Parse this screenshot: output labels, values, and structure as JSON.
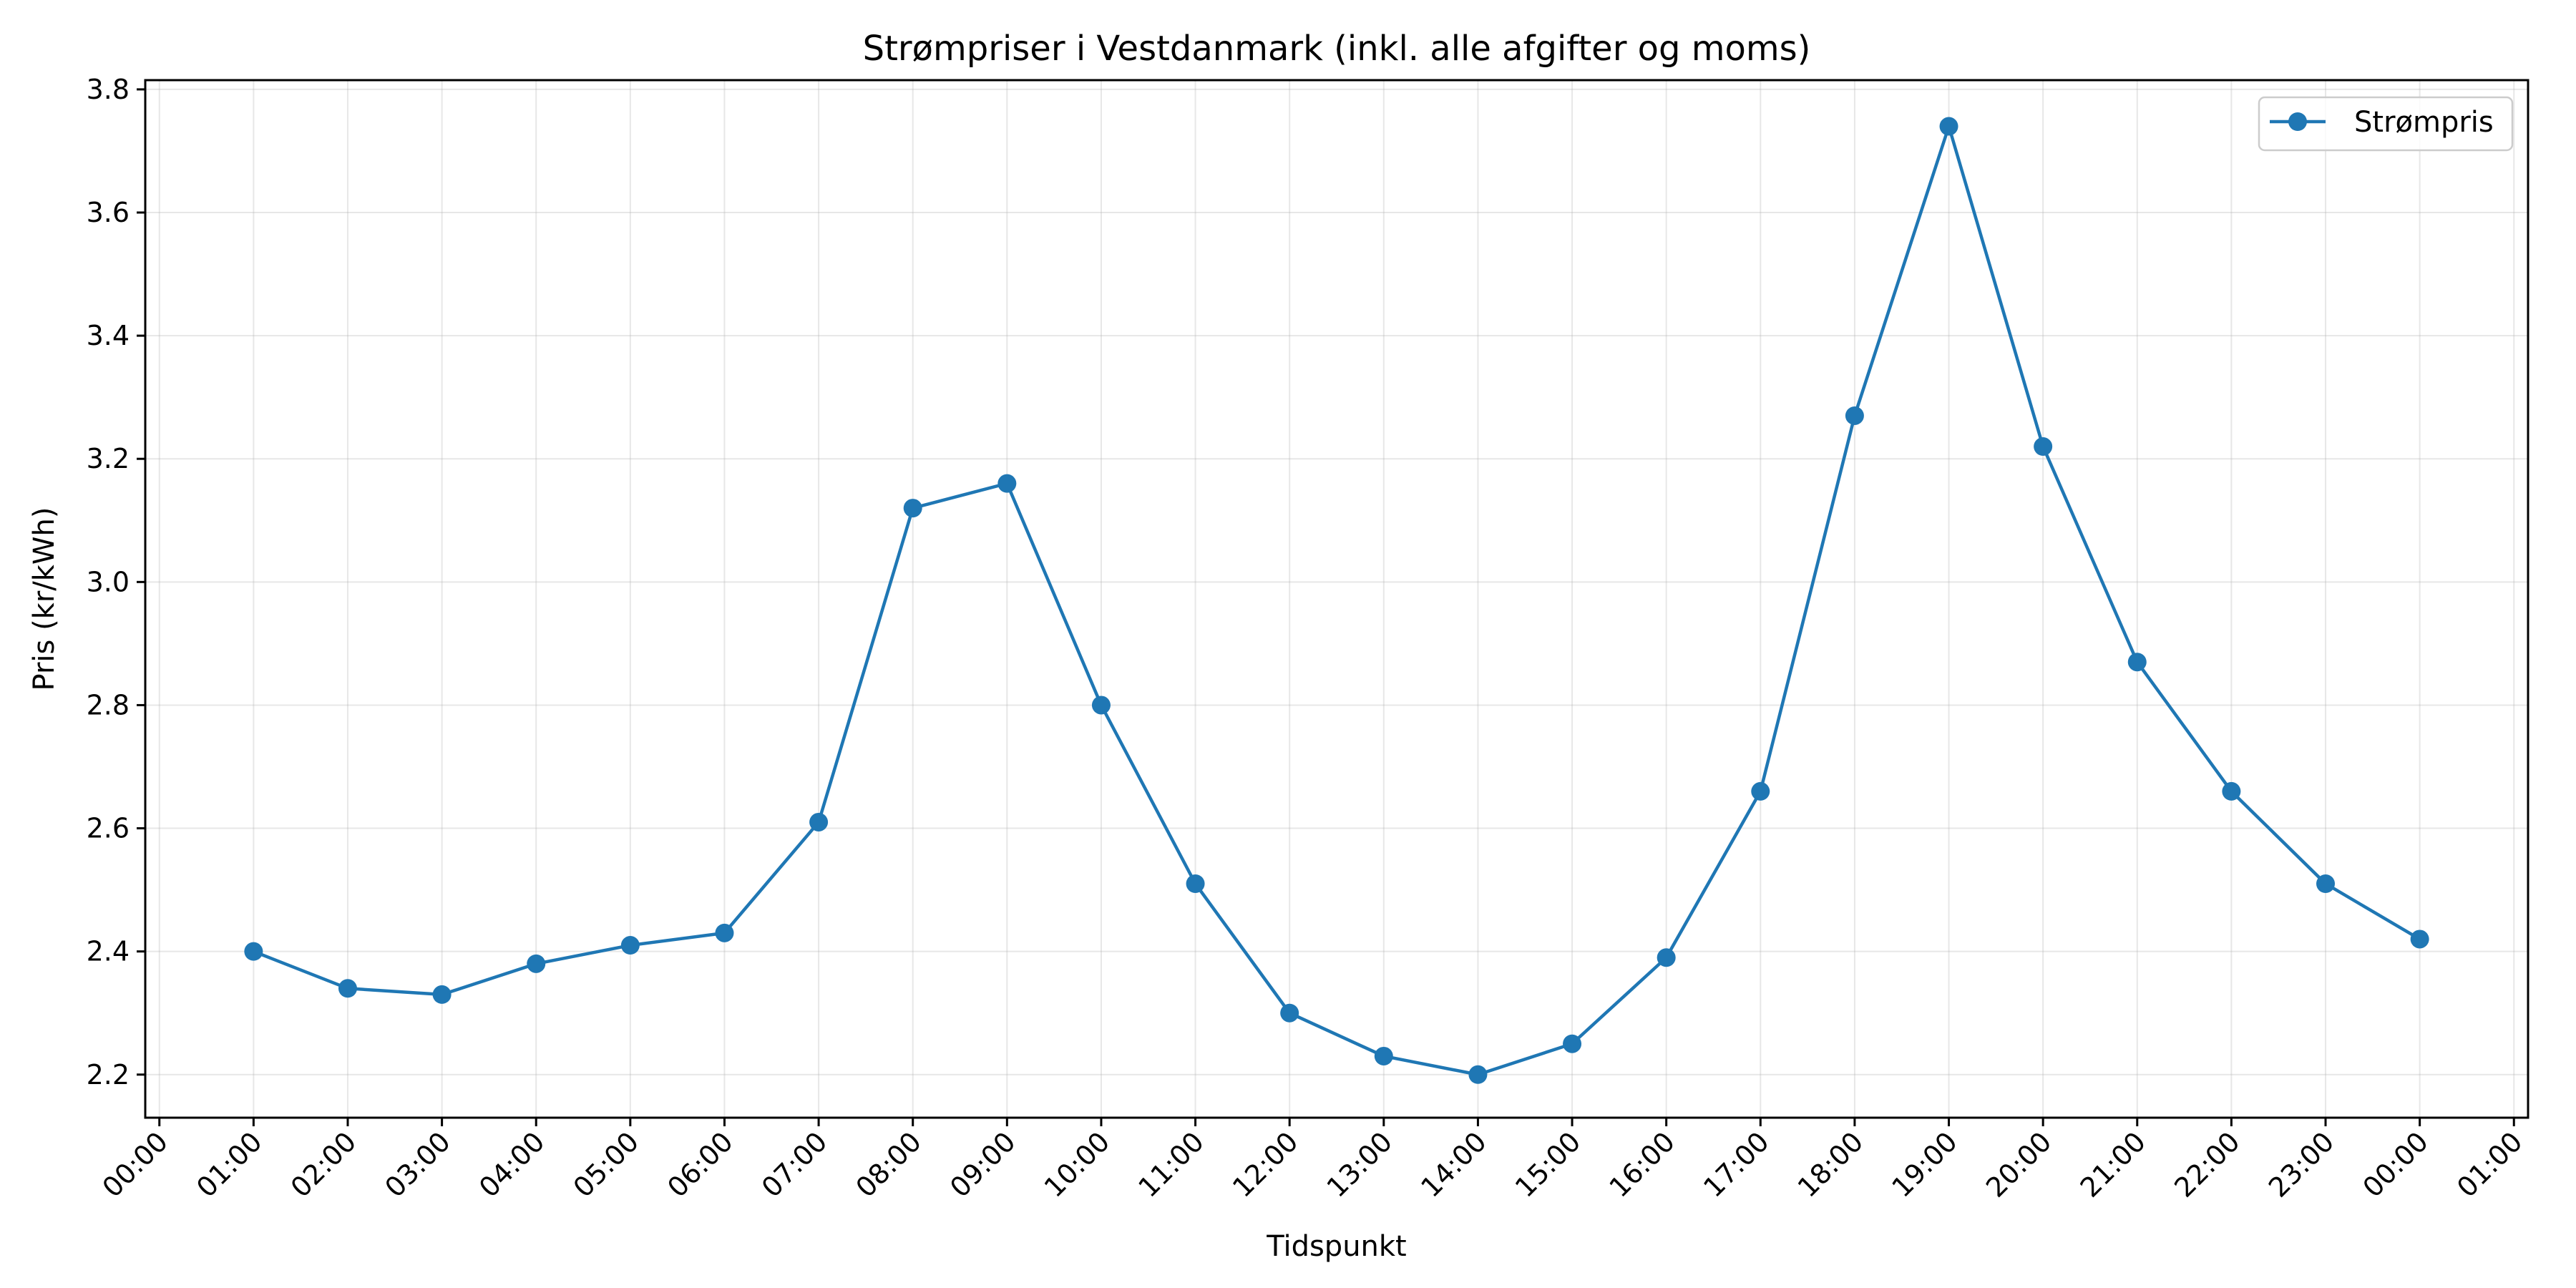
{
  "chart_data": {
    "type": "line",
    "title": "Strømpriser i Vestdanmark (inkl. alle afgifter og moms)",
    "xlabel": "Tidspunkt",
    "ylabel": "Pris (kr/kWh)",
    "x_ticks": [
      "00:00",
      "01:00",
      "02:00",
      "03:00",
      "04:00",
      "05:00",
      "06:00",
      "07:00",
      "08:00",
      "09:00",
      "10:00",
      "11:00",
      "12:00",
      "13:00",
      "14:00",
      "15:00",
      "16:00",
      "17:00",
      "18:00",
      "19:00",
      "20:00",
      "21:00",
      "22:00",
      "23:00",
      "00:00",
      "01:00"
    ],
    "y_ticks": [
      2.2,
      2.4,
      2.6,
      2.8,
      3.0,
      3.2,
      3.4,
      3.6,
      3.8
    ],
    "xlim_hours": [
      -0.15,
      25.15
    ],
    "ylim": [
      2.13,
      3.815
    ],
    "grid": true,
    "legend_position": "top-right",
    "series": [
      {
        "name": "Strømpris",
        "color": "#1f77b4",
        "marker": "circle",
        "x": [
          "01:00",
          "02:00",
          "03:00",
          "04:00",
          "05:00",
          "06:00",
          "07:00",
          "08:00",
          "09:00",
          "10:00",
          "11:00",
          "12:00",
          "13:00",
          "14:00",
          "15:00",
          "16:00",
          "17:00",
          "18:00",
          "19:00",
          "20:00",
          "21:00",
          "22:00",
          "23:00",
          "00:00"
        ],
        "x_hours": [
          1,
          2,
          3,
          4,
          5,
          6,
          7,
          8,
          9,
          10,
          11,
          12,
          13,
          14,
          15,
          16,
          17,
          18,
          19,
          20,
          21,
          22,
          23,
          24
        ],
        "values": [
          2.4,
          2.34,
          2.33,
          2.38,
          2.41,
          2.43,
          2.61,
          3.12,
          3.16,
          2.8,
          2.51,
          2.3,
          2.23,
          2.2,
          2.25,
          2.39,
          2.66,
          3.27,
          3.74,
          3.22,
          2.87,
          2.66,
          2.51,
          2.42
        ]
      }
    ]
  }
}
